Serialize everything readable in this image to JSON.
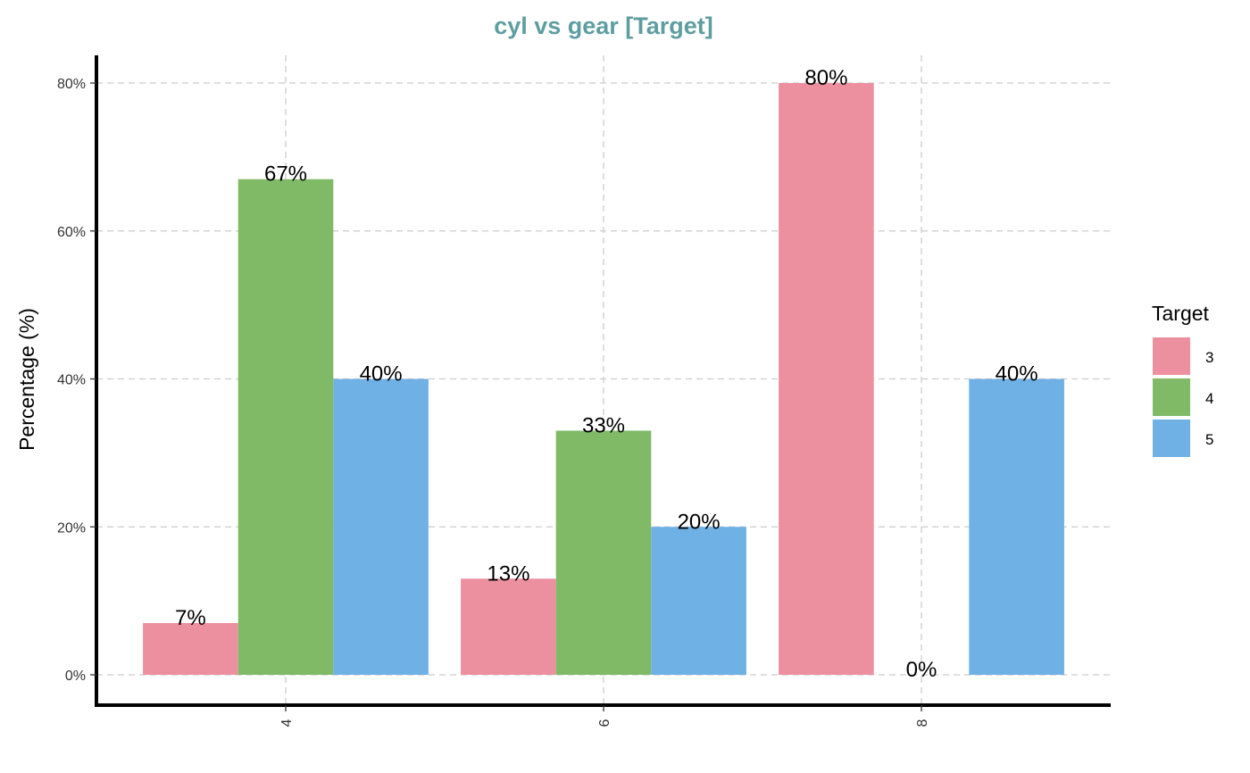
{
  "chart_data": {
    "type": "bar",
    "title": "cyl vs gear [Target]",
    "xlabel": "",
    "ylabel": "Percentage (%)",
    "categories": [
      "4",
      "6",
      "8"
    ],
    "y_ticks": [
      "0%",
      "20%",
      "40%",
      "60%",
      "80%"
    ],
    "ylim": [
      -4,
      84
    ],
    "grid": true,
    "legend": {
      "title": "Target",
      "placement": "right"
    },
    "series": [
      {
        "name": "3",
        "color": "#ec909f",
        "values": [
          7,
          13,
          80
        ],
        "labels": [
          "7%",
          "13%",
          "80%"
        ]
      },
      {
        "name": "4",
        "color": "#80ba67",
        "values": [
          67,
          33,
          0
        ],
        "labels": [
          "67%",
          "33%",
          "0%"
        ]
      },
      {
        "name": "5",
        "color": "#6fb0e5",
        "values": [
          40,
          20,
          40
        ],
        "labels": [
          "40%",
          "20%",
          "40%"
        ]
      }
    ]
  }
}
